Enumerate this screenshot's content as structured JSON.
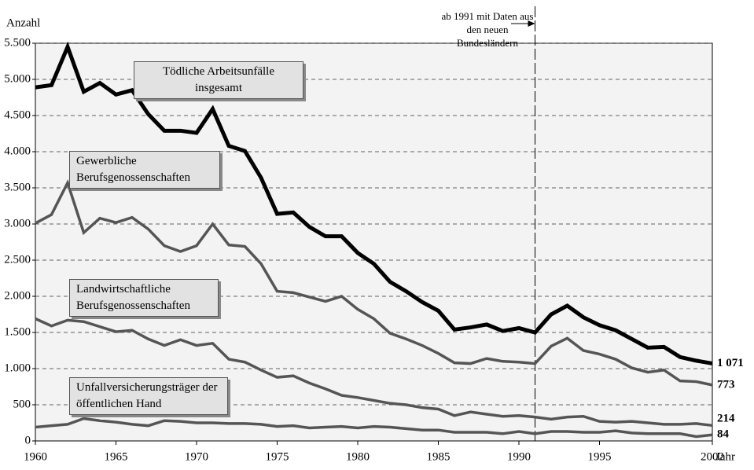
{
  "chart_data": {
    "type": "line",
    "y_label": "Anzahl",
    "x_label": "Jahr",
    "annotation": "ab 1991 mit Daten aus den neuen Bundesländern",
    "marker_line_x": 1991,
    "xlim": [
      1960,
      2002
    ],
    "xticks": [
      1960,
      1965,
      1970,
      1975,
      1980,
      1985,
      1990,
      1995,
      2002
    ],
    "ylim": [
      0,
      5500
    ],
    "yticks": [
      0,
      {
        "value": 500,
        "label": "500"
      },
      {
        "value": 1000,
        "label": "1.000"
      },
      {
        "value": 1500,
        "label": "1.500"
      },
      {
        "value": 2000,
        "label": "2.000"
      },
      {
        "value": 2500,
        "label": "2.500"
      },
      {
        "value": 3000,
        "label": "3.000"
      },
      {
        "value": 3500,
        "label": "3.500"
      },
      {
        "value": 4000,
        "label": "4.000"
      },
      {
        "value": 4500,
        "label": "4.500"
      },
      {
        "value": 5000,
        "label": "5.000"
      },
      {
        "value": 5500,
        "label": "5.500"
      }
    ],
    "grid": true,
    "x": [
      1960,
      1961,
      1962,
      1963,
      1964,
      1965,
      1966,
      1967,
      1968,
      1969,
      1970,
      1971,
      1972,
      1973,
      1974,
      1975,
      1976,
      1977,
      1978,
      1979,
      1980,
      1981,
      1982,
      1983,
      1984,
      1985,
      1986,
      1987,
      1988,
      1989,
      1990,
      1991,
      1992,
      1993,
      1994,
      1995,
      1996,
      1997,
      1998,
      1999,
      2000,
      2001,
      2002
    ],
    "series": [
      {
        "name": "Tödliche Arbeitsunfälle insgesamt",
        "color": "#000000",
        "width": 5,
        "values": [
          4890,
          4920,
          5450,
          4830,
          4950,
          4790,
          4850,
          4520,
          4290,
          4290,
          4260,
          4590,
          4080,
          4010,
          3640,
          3140,
          3160,
          2960,
          2830,
          2830,
          2600,
          2450,
          2200,
          2070,
          1920,
          1800,
          1540,
          1570,
          1610,
          1520,
          1560,
          1500,
          1750,
          1870,
          1710,
          1600,
          1530,
          1410,
          1290,
          1300,
          1160,
          1110,
          1071
        ],
        "end_label": "1 071"
      },
      {
        "name": "Gewerbliche Berufsgenossenschaften",
        "color": "#555555",
        "width": 3.5,
        "values": [
          3010,
          3130,
          3570,
          2880,
          3080,
          3020,
          3090,
          2930,
          2700,
          2620,
          2700,
          3000,
          2710,
          2690,
          2450,
          2070,
          2050,
          1990,
          1930,
          2000,
          1820,
          1690,
          1490,
          1410,
          1320,
          1210,
          1080,
          1070,
          1140,
          1100,
          1090,
          1070,
          1310,
          1420,
          1250,
          1200,
          1130,
          1010,
          950,
          980,
          830,
          820,
          773
        ],
        "end_label": "773"
      },
      {
        "name": "Landwirtschaftliche Berufsgenossenschaften",
        "color": "#555555",
        "width": 3.5,
        "values": [
          1690,
          1590,
          1670,
          1650,
          1580,
          1510,
          1530,
          1410,
          1320,
          1400,
          1320,
          1350,
          1130,
          1090,
          980,
          880,
          900,
          800,
          720,
          630,
          600,
          560,
          520,
          500,
          460,
          440,
          350,
          400,
          370,
          340,
          350,
          330,
          300,
          330,
          340,
          270,
          260,
          270,
          250,
          230,
          230,
          240,
          214
        ],
        "end_label": "214"
      },
      {
        "name": "Unfallversicherungsträger der öffentlichen Hand",
        "color": "#555555",
        "width": 3.5,
        "values": [
          190,
          210,
          230,
          310,
          280,
          260,
          230,
          210,
          280,
          270,
          250,
          250,
          240,
          240,
          230,
          200,
          210,
          180,
          190,
          200,
          180,
          200,
          190,
          170,
          150,
          150,
          120,
          120,
          120,
          100,
          130,
          100,
          130,
          130,
          120,
          120,
          140,
          110,
          100,
          100,
          100,
          60,
          84
        ],
        "end_label": "84"
      }
    ]
  }
}
